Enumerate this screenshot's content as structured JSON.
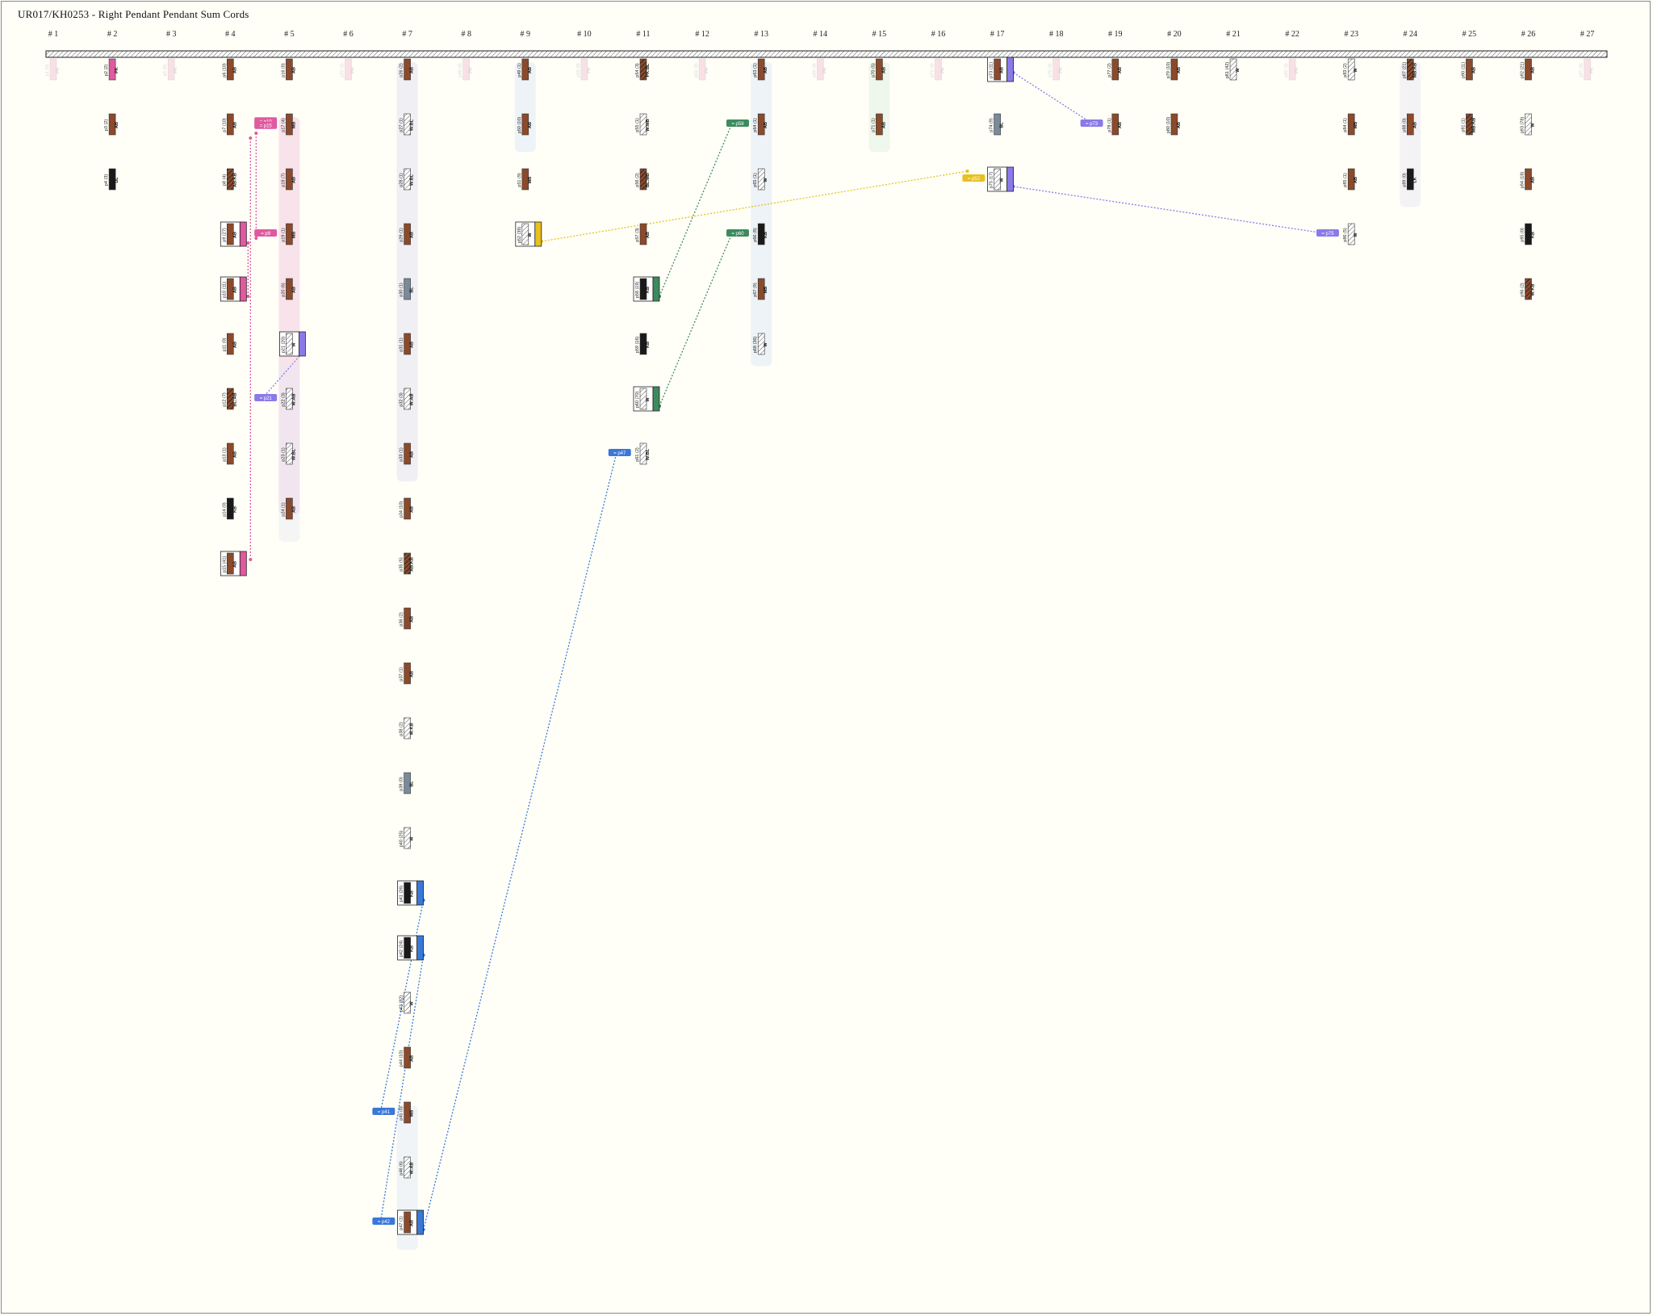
{
  "title": "UR017/KH0253 - Right Pendant Pendant Sum Cords",
  "columns": [
    "# 1",
    "# 2",
    "# 3",
    "# 4",
    "# 5",
    "# 6",
    "# 7",
    "# 8",
    "# 9",
    "# 10",
    "# 11",
    "# 12",
    "# 13",
    "# 14",
    "# 15",
    "# 16",
    "# 17",
    "# 18",
    "# 19",
    "# 20",
    "# 21",
    "# 22",
    "# 23",
    "# 24",
    "# 25",
    "# 26",
    "# 27"
  ],
  "colors": {
    "brown": "#8b4a2b",
    "black": "#1a1a1a",
    "white": "#ffffff",
    "pink": "#e05aa0",
    "blue": "#3a78d8",
    "green": "#3d8a5e",
    "yellow": "#e8c020",
    "purple": "#8a7ae8",
    "grey": "#7a8a9a"
  },
  "pendants": [
    {
      "id": "p1",
      "label": "p1 (0)",
      "code": "PK",
      "col": 1,
      "row": 0,
      "fill": "pink",
      "ghost": true
    },
    {
      "id": "p2",
      "label": "p2 (2)",
      "code": "PK",
      "col": 2,
      "row": 0,
      "fill": "pink"
    },
    {
      "id": "p3",
      "label": "p3 (2)",
      "code": "AB",
      "col": 2,
      "row": 1,
      "fill": "brown"
    },
    {
      "id": "p4",
      "label": "p4 (3)",
      "code": "DL",
      "col": 2,
      "row": 2,
      "fill": "black"
    },
    {
      "id": "p5",
      "label": "p5 (0)",
      "code": "PK",
      "col": 3,
      "row": 0,
      "fill": "pink",
      "ghost": true
    },
    {
      "id": "p6",
      "label": "p6 (10)",
      "code": "AB",
      "col": 4,
      "row": 0,
      "fill": "brown"
    },
    {
      "id": "p7",
      "label": "p7 (10)",
      "code": "AB",
      "col": 4,
      "row": 1,
      "fill": "brown"
    },
    {
      "id": "p8",
      "label": "p8 (4)",
      "code": "AB:KB",
      "col": 4,
      "row": 2,
      "fill": "mixed"
    },
    {
      "id": "p9",
      "label": "p9 (27)",
      "code": "AB",
      "col": 4,
      "row": 3,
      "fill": "brown",
      "sum": "pink"
    },
    {
      "id": "p10",
      "label": "p10 (11)",
      "code": "AB",
      "col": 4,
      "row": 4,
      "fill": "brown",
      "sum": "pink"
    },
    {
      "id": "p11",
      "label": "p11 (0)",
      "code": "AB",
      "col": 4,
      "row": 5,
      "fill": "brown"
    },
    {
      "id": "p12",
      "label": "p12 (7)",
      "code": "BL:AB",
      "col": 4,
      "row": 6,
      "fill": "mixed"
    },
    {
      "id": "p13",
      "label": "p13 (1)",
      "code": "AB",
      "col": 4,
      "row": 7,
      "fill": "brown"
    },
    {
      "id": "p14",
      "label": "p14 (0)",
      "code": "KB",
      "col": 4,
      "row": 8,
      "fill": "black"
    },
    {
      "id": "p15",
      "label": "p15 (41)",
      "code": "AB",
      "col": 4,
      "row": 9,
      "fill": "brown",
      "sum": "pink"
    },
    {
      "id": "p16",
      "label": "p16 (0)",
      "code": "AB",
      "col": 5,
      "row": 0,
      "fill": "brown"
    },
    {
      "id": "p17",
      "label": "p17 (4)",
      "code": "MB",
      "col": 5,
      "row": 1,
      "fill": "brown"
    },
    {
      "id": "p18",
      "label": "p18 (7)",
      "code": "AB",
      "col": 5,
      "row": 2,
      "fill": "brown"
    },
    {
      "id": "p19",
      "label": "p19 (1)",
      "code": "MB",
      "col": 5,
      "row": 3,
      "fill": "brown"
    },
    {
      "id": "p20",
      "label": "p20 (6)",
      "code": "AB",
      "col": 5,
      "row": 4,
      "fill": "brown"
    },
    {
      "id": "p21",
      "label": "p21 (20)",
      "code": "W",
      "col": 5,
      "row": 5,
      "fill": "white",
      "sum": "purple"
    },
    {
      "id": "p22",
      "label": "p22 (3)",
      "code": "W:AB",
      "col": 5,
      "row": 6,
      "fill": "white"
    },
    {
      "id": "p23",
      "label": "p23 (1)",
      "code": "W:BL",
      "col": 5,
      "row": 7,
      "fill": "white"
    },
    {
      "id": "p24",
      "label": "p24 (1)",
      "code": "AB",
      "col": 5,
      "row": 8,
      "fill": "brown"
    },
    {
      "id": "p25",
      "label": "p25 (0)",
      "code": "PK",
      "col": 6,
      "row": 0,
      "fill": "pink",
      "ghost": true
    },
    {
      "id": "p26",
      "label": "p26 (2)",
      "code": "AB",
      "col": 7,
      "row": 0,
      "fill": "brown"
    },
    {
      "id": "p27",
      "label": "p27 (1)",
      "code": "W:BL",
      "col": 7,
      "row": 1,
      "fill": "white"
    },
    {
      "id": "p28",
      "label": "p28 (1)",
      "code": "W:BL",
      "col": 7,
      "row": 2,
      "fill": "white"
    },
    {
      "id": "p29",
      "label": "p29 (1)",
      "code": "AB",
      "col": 7,
      "row": 3,
      "fill": "brown"
    },
    {
      "id": "p30",
      "label": "p30 (1)",
      "code": "BL",
      "col": 7,
      "row": 4,
      "fill": "grey"
    },
    {
      "id": "p31",
      "label": "p31 (1)",
      "code": "AB",
      "col": 7,
      "row": 5,
      "fill": "brown"
    },
    {
      "id": "p32",
      "label": "p32 (3)",
      "code": "W:AB",
      "col": 7,
      "row": 6,
      "fill": "white"
    },
    {
      "id": "p33",
      "label": "p33 (1)",
      "code": "AB",
      "col": 7,
      "row": 7,
      "fill": "brown"
    },
    {
      "id": "p34",
      "label": "p34 (10)",
      "code": "AB",
      "col": 7,
      "row": 8,
      "fill": "brown"
    },
    {
      "id": "p35",
      "label": "p35 (5)",
      "code": "AB:KB",
      "col": 7,
      "row": 9,
      "fill": "mixed"
    },
    {
      "id": "p36",
      "label": "p36 (2)",
      "code": "AB",
      "col": 7,
      "row": 10,
      "fill": "brown"
    },
    {
      "id": "p37",
      "label": "p37 (1)",
      "code": "AB",
      "col": 7,
      "row": 11,
      "fill": "brown"
    },
    {
      "id": "p38",
      "label": "p38 (2)",
      "code": "W:KB",
      "col": 7,
      "row": 12,
      "fill": "white"
    },
    {
      "id": "p39",
      "label": "p39 (0)",
      "code": "BL",
      "col": 7,
      "row": 13,
      "fill": "grey"
    },
    {
      "id": "p40",
      "label": "p40 (25)",
      "code": "W",
      "col": 7,
      "row": 14,
      "fill": "white"
    },
    {
      "id": "p41",
      "label": "p41 (26)",
      "code": "KB",
      "col": 7,
      "row": 15,
      "fill": "black",
      "sum": "blue"
    },
    {
      "id": "p42",
      "label": "p42 (24)",
      "code": "KB",
      "col": 7,
      "row": 16,
      "fill": "black",
      "sum": "blue"
    },
    {
      "id": "p43",
      "label": "p43 (82)",
      "code": "W",
      "col": 7,
      "row": 17,
      "fill": "white"
    },
    {
      "id": "p44",
      "label": "p44 (10)",
      "code": "AB",
      "col": 7,
      "row": 18,
      "fill": "brown"
    },
    {
      "id": "p45",
      "label": "p45 (0)",
      "code": "MB",
      "col": 7,
      "row": 19,
      "fill": "brown"
    },
    {
      "id": "p46",
      "label": "p46 (6)",
      "code": "W:AB",
      "col": 7,
      "row": 20,
      "fill": "white"
    },
    {
      "id": "p47",
      "label": "p47 (1)",
      "code": "AB",
      "col": 7,
      "row": 21,
      "fill": "brown",
      "sum": "blue"
    },
    {
      "id": "p48",
      "label": "p48 (0)",
      "code": "PK",
      "col": 8,
      "row": 0,
      "fill": "pink",
      "ghost": true
    },
    {
      "id": "p49",
      "label": "p49 (1)",
      "code": "AB",
      "col": 9,
      "row": 0,
      "fill": "brown"
    },
    {
      "id": "p50",
      "label": "p50 (10)",
      "code": "AB",
      "col": 9,
      "row": 1,
      "fill": "brown"
    },
    {
      "id": "p51",
      "label": "p51 (9)",
      "code": "MB",
      "col": 9,
      "row": 2,
      "fill": "brown"
    },
    {
      "id": "p52",
      "label": "p52 (39)",
      "code": "W",
      "col": 9,
      "row": 3,
      "fill": "white",
      "sum": "yellow"
    },
    {
      "id": "p53",
      "label": "p53 (0)",
      "code": "PK",
      "col": 10,
      "row": 0,
      "fill": "pink",
      "ghost": true
    },
    {
      "id": "p54",
      "label": "p54 (3)",
      "code": "PK:BL",
      "col": 11,
      "row": 0,
      "fill": "mixed"
    },
    {
      "id": "p55",
      "label": "p55 (1)",
      "code": "W:MB",
      "col": 11,
      "row": 1,
      "fill": "white"
    },
    {
      "id": "p56",
      "label": "p56 (2)",
      "code": "BL:MB",
      "col": 11,
      "row": 2,
      "fill": "mixed"
    },
    {
      "id": "p57",
      "label": "p57 (3)",
      "code": "AB",
      "col": 11,
      "row": 3,
      "fill": "brown"
    },
    {
      "id": "p58",
      "label": "p58 (19)",
      "code": "KB",
      "col": 11,
      "row": 4,
      "fill": "black",
      "sum": "green"
    },
    {
      "id": "p59",
      "label": "p59 (16)",
      "code": "KB",
      "col": 11,
      "row": 5,
      "fill": "black"
    },
    {
      "id": "p60",
      "label": "p60 (70)",
      "code": "W",
      "col": 11,
      "row": 6,
      "fill": "white",
      "sum": "green"
    },
    {
      "id": "p61",
      "label": "p61 (2)",
      "code": "W:BL",
      "col": 11,
      "row": 7,
      "fill": "white"
    },
    {
      "id": "p62",
      "label": "p62 (0)",
      "code": "PK",
      "col": 12,
      "row": 0,
      "fill": "pink",
      "ghost": true
    },
    {
      "id": "p63",
      "label": "p63 (1)",
      "code": "AB",
      "col": 13,
      "row": 0,
      "fill": "brown"
    },
    {
      "id": "p64",
      "label": "p64 (1)",
      "code": "AB",
      "col": 13,
      "row": 1,
      "fill": "brown"
    },
    {
      "id": "p65",
      "label": "p65 (1)",
      "code": "W",
      "col": 13,
      "row": 2,
      "fill": "white"
    },
    {
      "id": "p66",
      "label": "p66 (8)",
      "code": "KB",
      "col": 13,
      "row": 3,
      "fill": "black"
    },
    {
      "id": "p67",
      "label": "p67 (9)",
      "code": "MB",
      "col": 13,
      "row": 4,
      "fill": "brown"
    },
    {
      "id": "p68",
      "label": "p68 (36)",
      "code": "W",
      "col": 13,
      "row": 5,
      "fill": "white"
    },
    {
      "id": "p69",
      "label": "p69 (0)",
      "code": "PK",
      "col": 14,
      "row": 0,
      "fill": "pink",
      "ghost": true
    },
    {
      "id": "p70",
      "label": "p70 (5)",
      "code": "AB",
      "col": 15,
      "row": 0,
      "fill": "brown"
    },
    {
      "id": "p71",
      "label": "p71 (1)",
      "code": "AB",
      "col": 15,
      "row": 1,
      "fill": "brown"
    },
    {
      "id": "p72",
      "label": "p72 (0)",
      "code": "PK",
      "col": 16,
      "row": 0,
      "fill": "pink",
      "ghost": true
    },
    {
      "id": "p73",
      "label": "p73 (11)",
      "code": "AB",
      "col": 17,
      "row": 0,
      "fill": "brown",
      "sum": "purple"
    },
    {
      "id": "p74",
      "label": "p74 (9)",
      "code": "BL",
      "col": 17,
      "row": 1,
      "fill": "grey"
    },
    {
      "id": "p75",
      "label": "p75 (17)",
      "code": "W",
      "col": 17,
      "row": 2,
      "fill": "white",
      "sum": "purple"
    },
    {
      "id": "p76",
      "label": "p76 (0)",
      "code": "PK",
      "col": 18,
      "row": 0,
      "fill": "pink",
      "ghost": true
    },
    {
      "id": "p77",
      "label": "p77 (2)",
      "code": "AB",
      "col": 19,
      "row": 0,
      "fill": "brown"
    },
    {
      "id": "p78",
      "label": "p78 (1)",
      "code": "AB",
      "col": 19,
      "row": 1,
      "fill": "brown"
    },
    {
      "id": "p79",
      "label": "p79 (10)",
      "code": "AB",
      "col": 20,
      "row": 0,
      "fill": "brown"
    },
    {
      "id": "p80",
      "label": "p80 (10)",
      "code": "AB",
      "col": 20,
      "row": 1,
      "fill": "brown"
    },
    {
      "id": "p81",
      "label": "p81 (42)",
      "code": "W",
      "col": 21,
      "row": 0,
      "fill": "white"
    },
    {
      "id": "p82",
      "label": "p82 (0)",
      "code": "PK",
      "col": 22,
      "row": 0,
      "fill": "pink",
      "ghost": true
    },
    {
      "id": "p83",
      "label": "p83 (2)",
      "code": "W",
      "col": 23,
      "row": 0,
      "fill": "white"
    },
    {
      "id": "p84",
      "label": "p84 (1)",
      "code": "MB",
      "col": 23,
      "row": 1,
      "fill": "brown"
    },
    {
      "id": "p85",
      "label": "p85 (1)",
      "code": "AB",
      "col": 23,
      "row": 2,
      "fill": "brown"
    },
    {
      "id": "p86",
      "label": "p86 (5)",
      "code": "W",
      "col": 23,
      "row": 3,
      "fill": "white"
    },
    {
      "id": "p87",
      "label": "p87 (21)",
      "code": "MB:KB",
      "col": 24,
      "row": 0,
      "fill": "mixed"
    },
    {
      "id": "p88",
      "label": "p88 (0)",
      "code": "AB",
      "col": 24,
      "row": 1,
      "fill": "brown"
    },
    {
      "id": "p89",
      "label": "p89 (0)",
      "code": "LK",
      "col": 24,
      "row": 2,
      "fill": "black"
    },
    {
      "id": "p90",
      "label": "p90 (11)",
      "code": "AB",
      "col": 25,
      "row": 0,
      "fill": "brown"
    },
    {
      "id": "p91",
      "label": "p91 (1)",
      "code": "MB:KB",
      "col": 25,
      "row": 1,
      "fill": "mixed"
    },
    {
      "id": "p92",
      "label": "p92 (21)",
      "code": "AB",
      "col": 26,
      "row": 0,
      "fill": "brown"
    },
    {
      "id": "p93",
      "label": "p93 (78)",
      "code": "W",
      "col": 26,
      "row": 1,
      "fill": "white"
    },
    {
      "id": "p94",
      "label": "p94 (18)",
      "code": "AB",
      "col": 26,
      "row": 2,
      "fill": "brown"
    },
    {
      "id": "p95",
      "label": "p95 (0)",
      "code": "KB",
      "col": 26,
      "row": 3,
      "fill": "black"
    },
    {
      "id": "p96",
      "label": "p96 (2)",
      "code": "W:KB",
      "col": 26,
      "row": 4,
      "fill": "mixed"
    },
    {
      "id": "p97",
      "label": "p97 (0)",
      "code": "PK",
      "col": 27,
      "row": 0,
      "fill": "pink",
      "ghost": true
    }
  ],
  "sum_tags": [
    {
      "label": "= p10",
      "color": "pink",
      "col": 4.6,
      "row": 0.96
    },
    {
      "label": "= p15",
      "color": "pink",
      "col": 4.6,
      "row": 1.04
    },
    {
      "label": "= p9",
      "color": "pink",
      "col": 4.6,
      "row": 3
    },
    {
      "label": "= p21",
      "color": "purple",
      "col": 4.6,
      "row": 6
    },
    {
      "label": "= p41",
      "color": "blue",
      "col": 6.6,
      "row": 19
    },
    {
      "label": "= p42",
      "color": "blue",
      "col": 6.6,
      "row": 21
    },
    {
      "label": "= p47",
      "color": "blue",
      "col": 10.6,
      "row": 7
    },
    {
      "label": "= p52",
      "color": "yellow",
      "col": 16.6,
      "row": 2
    },
    {
      "label": "= p58",
      "color": "green",
      "col": 12.6,
      "row": 1
    },
    {
      "label": "= p60",
      "color": "green",
      "col": 12.6,
      "row": 3
    },
    {
      "label": "= p73",
      "color": "purple",
      "col": 18.6,
      "row": 1
    },
    {
      "label": "= p75",
      "color": "purple",
      "col": 22.6,
      "row": 3
    }
  ]
}
